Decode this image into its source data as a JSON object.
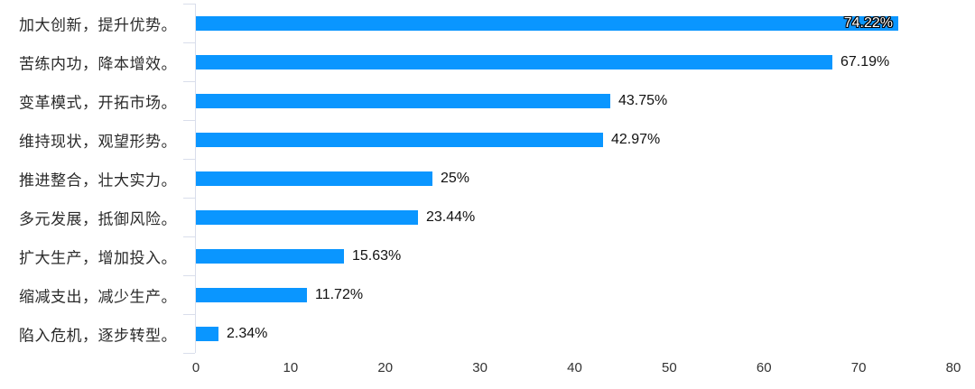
{
  "chart_data": {
    "type": "bar",
    "orientation": "horizontal",
    "title": "",
    "xlabel": "",
    "ylabel": "",
    "categories": [
      "加大创新，提升优势。",
      "苦练内功，降本增效。",
      "变革模式，开拓市场。",
      "维持现状，观望形势。",
      "推进整合，壮大实力。",
      "多元发展，抵御风险。",
      "扩大生产，增加投入。",
      "缩减支出，减少生产。",
      "陷入危机，逐步转型。"
    ],
    "values": [
      74.22,
      67.19,
      43.75,
      42.97,
      25,
      23.44,
      15.63,
      11.72,
      2.34
    ],
    "value_labels": [
      "74.22%",
      "67.19%",
      "43.75%",
      "42.97%",
      "25%",
      "23.44%",
      "15.63%",
      "11.72%",
      "2.34%"
    ],
    "label_positions": [
      "inside",
      "outside",
      "outside",
      "outside",
      "outside",
      "outside",
      "outside",
      "outside",
      "outside"
    ],
    "xlim": [
      0,
      80
    ],
    "xticks": [
      0,
      10,
      20,
      30,
      40,
      50,
      60,
      70,
      80
    ],
    "grid": false,
    "legend": false,
    "colors": {
      "bar": "#0a96ff",
      "axis_line": "#d9deeb",
      "category_text": "#2b2b2b",
      "value_text": "#111111",
      "tick_text": "#333333",
      "inside_label_text": "#ffffff",
      "inside_label_outline": "#000000",
      "background": "#ffffff"
    }
  }
}
